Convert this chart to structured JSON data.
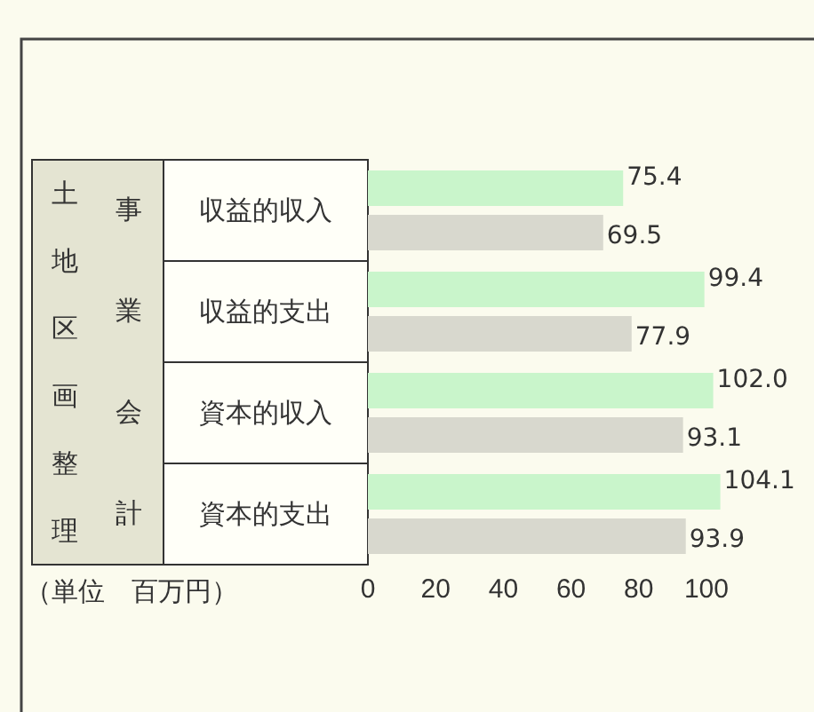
{
  "chart_data": {
    "type": "bar",
    "orientation": "horizontal",
    "categories": [
      "収益的収入",
      "収益的支出",
      "資本的収入",
      "資本的支出"
    ],
    "series": [
      {
        "color": "#c9f5cb",
        "values": [
          75.4,
          99.4,
          102.0,
          104.1
        ],
        "value_labels": [
          "75.4",
          "99.4",
          "102.0",
          "104.1"
        ]
      },
      {
        "color": "#d8d8ce",
        "values": [
          69.5,
          77.9,
          93.1,
          93.9
        ],
        "value_labels": [
          "69.5",
          "77.9",
          "93.1",
          "93.9"
        ]
      }
    ],
    "xlim": [
      0,
      105
    ],
    "xticks": [
      0,
      20,
      40,
      60,
      80,
      100
    ],
    "annotations": [
      "土地区画整理",
      "事業会計",
      "（単位　百万円）"
    ],
    "grid": false
  }
}
